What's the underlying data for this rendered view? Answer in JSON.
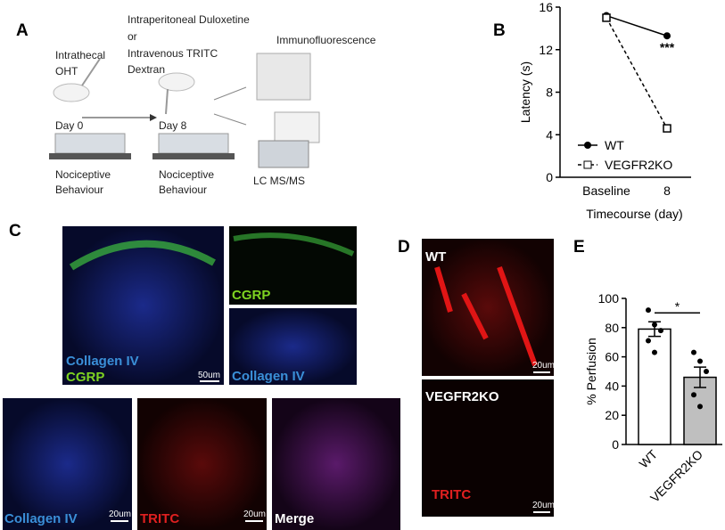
{
  "panel_a": {
    "label": "A",
    "texts": [
      "Intrathecal",
      "OHT",
      "Intraperitoneal Duloxetine",
      "or",
      "Intravenous TRITC",
      "Dextran",
      "Immunofluorescence",
      "Day 0",
      "Day 8",
      "Nociceptive",
      "Behaviour",
      "Nociceptive",
      "Behaviour",
      "LC MS/MS"
    ]
  },
  "panel_b": {
    "label": "B"
  },
  "panel_c": {
    "label": "C",
    "texts": [
      "Collagen IV",
      "CGRP",
      "50um",
      "CGRP",
      "Collagen IV",
      "Collagen IV",
      "20um",
      "TRITC",
      "20um",
      "Merge"
    ]
  },
  "panel_d": {
    "label": "D",
    "texts": [
      "WT",
      "20um",
      "VEGFR2KO",
      "TRITC",
      "20um"
    ]
  },
  "panel_e": {
    "label": "E"
  },
  "chart_data": [
    {
      "type": "line",
      "categories": [
        "Baseline",
        "8"
      ],
      "xlabel": "Timecourse (day)",
      "ylabel": "Latency (s)",
      "ylim": [
        0,
        16
      ],
      "yticks": [
        0,
        4,
        8,
        12,
        16
      ],
      "legend": "bottom-left",
      "annotation": "***",
      "series": [
        {
          "name": "WT",
          "color": "#000000",
          "style": "solid",
          "marker": "circle",
          "values": [
            15.2,
            13.3
          ]
        },
        {
          "name": "VEGFR2KO",
          "color": "#000000",
          "style": "dashed",
          "marker": "square",
          "values": [
            15.0,
            4.6
          ]
        }
      ]
    },
    {
      "type": "bar",
      "categories": [
        "WT",
        "VEGFR2KO"
      ],
      "ylabel": "% Perfusion",
      "colors": [
        "#ffffff",
        "#bfbfbf"
      ],
      "values": [
        79,
        46
      ],
      "errors": [
        5,
        7
      ],
      "points": [
        [
          92,
          82,
          78,
          71,
          63
        ],
        [
          63,
          57,
          50,
          34,
          26
        ]
      ],
      "ylim": [
        0,
        100
      ],
      "yticks": [
        0,
        20,
        40,
        60,
        80,
        100
      ],
      "annotation": "*"
    }
  ]
}
